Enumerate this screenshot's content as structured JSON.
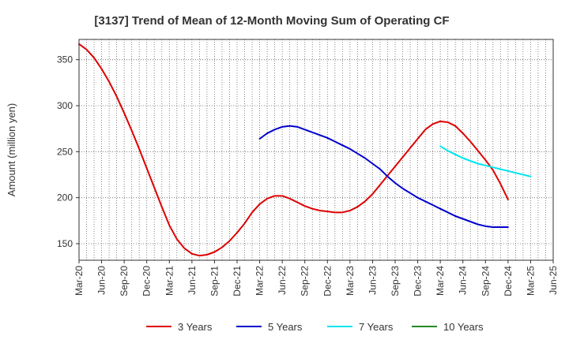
{
  "chart_data": {
    "type": "line",
    "title": "[3137]  Trend of Mean of 12-Month Moving Sum of Operating CF",
    "xlabel": "",
    "ylabel": "Amount (million yen)",
    "ylim": [
      132,
      372
    ],
    "yticks": [
      150,
      200,
      250,
      300,
      350
    ],
    "grid": true,
    "legend_position": "bottom",
    "x_tick_labels": [
      "Mar-20",
      "Jun-20",
      "Sep-20",
      "Dec-20",
      "Mar-21",
      "Jun-21",
      "Sep-21",
      "Dec-21",
      "Mar-22",
      "Jun-22",
      "Sep-22",
      "Dec-22",
      "Mar-23",
      "Jun-23",
      "Sep-23",
      "Dec-23",
      "Mar-24",
      "Jun-24",
      "Sep-24",
      "Dec-24",
      "Mar-25",
      "Jun-25"
    ],
    "months_start": "Mar-20",
    "months_count": 64,
    "series": [
      {
        "name": "3 Years",
        "color": "#dd0000",
        "start_index": 0,
        "values": [
          367,
          361,
          352,
          340,
          326,
          310,
          292,
          273,
          253,
          232,
          211,
          190,
          170,
          155,
          145,
          139,
          137,
          138,
          141,
          146,
          153,
          162,
          172,
          184,
          193,
          199,
          202,
          202,
          199,
          195,
          191,
          188,
          186,
          185,
          184,
          184,
          186,
          190,
          196,
          204,
          214,
          224,
          234,
          244,
          254,
          264,
          274,
          280,
          283,
          282,
          278,
          270,
          261,
          251,
          241,
          230,
          215,
          198
        ]
      },
      {
        "name": "5 Years",
        "color": "#0000cc",
        "start_index": 24,
        "values": [
          264,
          270,
          274,
          277,
          278,
          277,
          274,
          271,
          268,
          265,
          261,
          257,
          253,
          248,
          243,
          237,
          231,
          223,
          216,
          210,
          205,
          200,
          196,
          192,
          188,
          184,
          180,
          177,
          174,
          171,
          169,
          168,
          168,
          168
        ]
      },
      {
        "name": "7 Years",
        "color": "#00e5ee",
        "start_index": 48,
        "values": [
          256,
          251,
          247,
          243,
          240,
          237,
          235,
          233,
          231,
          229,
          227,
          225,
          223
        ]
      },
      {
        "name": "10 Years",
        "color": "#228b22",
        "start_index": 0,
        "values": []
      }
    ]
  }
}
